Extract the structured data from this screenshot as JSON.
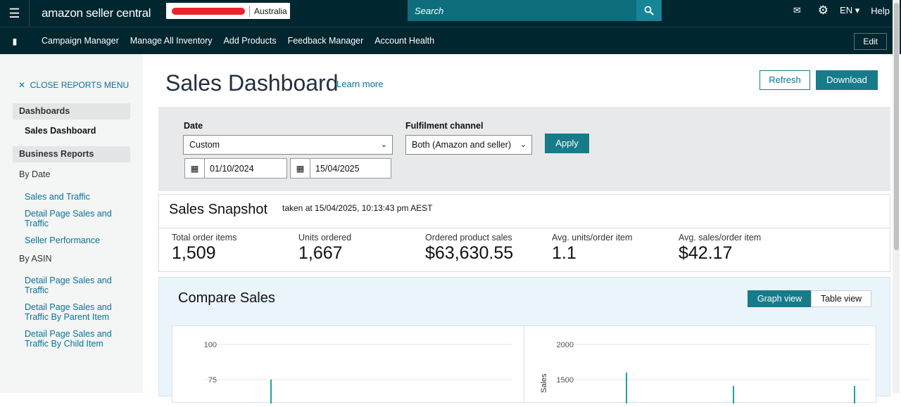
{
  "header": {
    "logo": "amazon seller central",
    "marketplace": "Australia",
    "search_placeholder": "Search",
    "language": "EN",
    "help": "Help"
  },
  "nav": {
    "items": [
      "Campaign Manager",
      "Manage All Inventory",
      "Add Products",
      "Feedback Manager",
      "Account Health"
    ],
    "edit": "Edit"
  },
  "sidebar": {
    "close": "CLOSE REPORTS MENU",
    "dashboards": "Dashboards",
    "sales_dashboard": "Sales Dashboard",
    "business_reports": "Business Reports",
    "by_date": "By Date",
    "by_date_items": [
      "Sales and Traffic",
      "Detail Page Sales and Traffic",
      "Seller Performance"
    ],
    "by_asin": "By ASIN",
    "by_asin_items": [
      "Detail Page Sales and Traffic",
      "Detail Page Sales and Traffic By Parent Item",
      "Detail Page Sales and Traffic By Child Item"
    ]
  },
  "page": {
    "title": "Sales Dashboard",
    "learn_more": "Learn more",
    "refresh": "Refresh",
    "download": "Download"
  },
  "filters": {
    "date_label": "Date",
    "date_value": "Custom",
    "from": "01/10/2024",
    "to": "15/04/2025",
    "channel_label": "Fulfilment channel",
    "channel_value": "Both (Amazon and seller)",
    "apply": "Apply"
  },
  "snapshot": {
    "title": "Sales Snapshot",
    "taken": "taken at 15/04/2025, 10:13:43 pm AEST",
    "metrics": [
      {
        "label": "Total order items",
        "value": "1,509"
      },
      {
        "label": "Units ordered",
        "value": "1,667"
      },
      {
        "label": "Ordered product sales",
        "value": "$63,630.55"
      },
      {
        "label": "Avg. units/order item",
        "value": "1.1"
      },
      {
        "label": "Avg. sales/order item",
        "value": "$42.17"
      }
    ]
  },
  "compare": {
    "title": "Compare Sales",
    "graph_view": "Graph view",
    "table_view": "Table view"
  },
  "chart_data": [
    {
      "type": "line",
      "yticks": [
        "100",
        "75"
      ],
      "ylabel": "",
      "ylim": [
        0,
        100
      ],
      "peaks": [
        75
      ]
    },
    {
      "type": "line",
      "yticks": [
        "2000",
        "1500"
      ],
      "ylabel": "Sales",
      "ylim": [
        0,
        2000
      ],
      "peaks": [
        1600,
        1410,
        1410
      ]
    }
  ],
  "colors": {
    "header": "#00262f",
    "accent": "#177b8a",
    "line": "#1aa3a8"
  }
}
